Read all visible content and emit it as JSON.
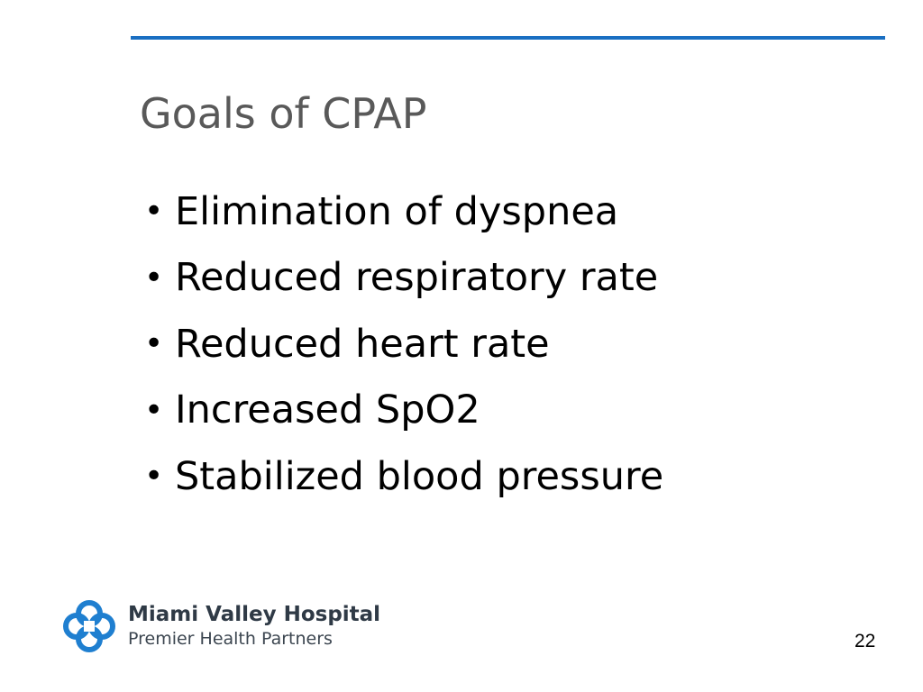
{
  "slide": {
    "title": "Goals of CPAP",
    "bullets": [
      "Elimination of dyspnea",
      "Reduced respiratory rate",
      "Reduced heart rate",
      "Increased SpO2",
      "Stabilized blood pressure"
    ],
    "bullet_symbol": "•",
    "page_number": "22"
  },
  "logo": {
    "name": "Miami Valley Hospital",
    "subtitle": "Premier Health Partners",
    "icon": "interlocking-cross-logo-icon"
  },
  "colors": {
    "accent_rule": "#1a6fc2",
    "title": "#595959",
    "logo_blue": "#1f7fd0"
  }
}
